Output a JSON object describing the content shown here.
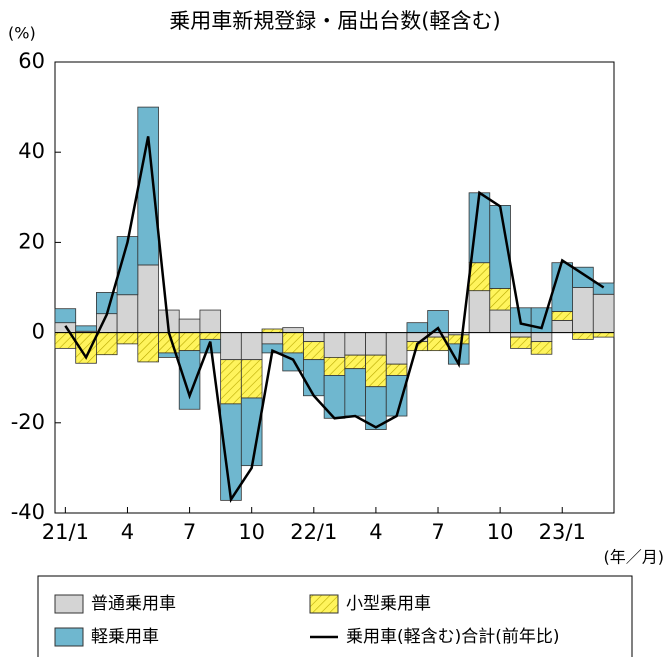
{
  "chart_data": {
    "type": "bar",
    "title": "乗用車新規登録・届出台数(軽含む)",
    "y_unit": "(%)",
    "x_unit": "(年／月)",
    "categories": [
      "21/1",
      null,
      null,
      "4",
      null,
      null,
      "7",
      null,
      null,
      "10",
      null,
      null,
      "22/1",
      null,
      null,
      "4",
      null,
      null,
      "7",
      null,
      null,
      "10",
      null,
      null,
      "23/1",
      null,
      null
    ],
    "ylim": [
      -40,
      60
    ],
    "yticks": [
      -40,
      -20,
      0,
      20,
      40,
      60
    ],
    "series": [
      {
        "name": "普通乗用車",
        "type": "bar",
        "color": "#d4d4d4",
        "values": [
          2.2,
          0.3,
          4.2,
          8.4,
          15,
          5,
          3,
          5,
          -6,
          -6,
          -2.5,
          1.1,
          -2,
          -5.5,
          -5,
          -5,
          -7,
          -2,
          -1,
          -0.5,
          9.3,
          5,
          -1,
          -2,
          2.7,
          10,
          8.5
        ]
      },
      {
        "name": "小型乗用車",
        "type": "bar",
        "color": "#fff45c",
        "hatch": true,
        "values": [
          -3.5,
          -6.8,
          -4.9,
          -2.5,
          -6.5,
          -4.5,
          -4,
          -1.5,
          -9.8,
          -8.5,
          0.8,
          -4.5,
          -4,
          -4,
          -3,
          -7,
          -2.5,
          -2,
          -3,
          -2,
          6.2,
          4.8,
          -2.5,
          -2.8,
          2,
          -1.5,
          -1
        ]
      },
      {
        "name": "軽乗用車",
        "type": "bar",
        "color": "#6fb7cf",
        "values": [
          3.1,
          1.2,
          4.7,
          12.9,
          35,
          -1,
          -13,
          -3,
          -21.4,
          -15,
          -2,
          -4,
          -8,
          -9.5,
          -10.5,
          -9.5,
          -9,
          2.2,
          4.9,
          -4.5,
          15.5,
          18.4,
          5.5,
          5.5,
          10.8,
          4.5,
          2.5
        ]
      },
      {
        "name": "乗用車(軽含む)合計(前年比)",
        "type": "line",
        "color": "#000000",
        "values": [
          1.5,
          -5.5,
          4,
          20,
          43.5,
          0,
          -14,
          -2,
          -37,
          -30,
          -4,
          -6,
          -14,
          -19,
          -18.5,
          -21,
          -18.5,
          -2.5,
          1,
          -7,
          31,
          28,
          2,
          1,
          16,
          13,
          10
        ]
      }
    ]
  }
}
